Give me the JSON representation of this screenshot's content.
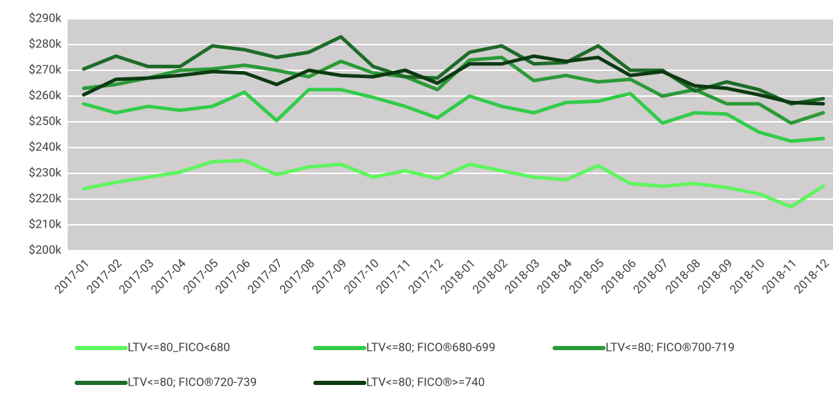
{
  "chart_data": {
    "type": "line",
    "categories": [
      "2017-01",
      "2017-02",
      "2017-03",
      "2017-04",
      "2017-05",
      "2017-06",
      "2017-07",
      "2017-08",
      "2017-09",
      "2017-10",
      "2017-11",
      "2017-12",
      "2018-01",
      "2018-02",
      "2018-03",
      "2018-04",
      "2018-05",
      "2018-06",
      "2018-07",
      "2018-08",
      "2018-09",
      "2018-10",
      "2018-11",
      "2018-12"
    ],
    "series": [
      {
        "name": "LTV<=80_FICO<680",
        "color": "#5ef55e",
        "values": [
          224000,
          226500,
          228500,
          230500,
          234500,
          235000,
          229500,
          232500,
          233500,
          228500,
          231000,
          228000,
          233500,
          231000,
          228500,
          227500,
          233000,
          226000,
          225000,
          226000,
          224500,
          222000,
          217000,
          225000
        ]
      },
      {
        "name": "LTV<=80; FICO®680-699",
        "color": "#33cc4a",
        "values": [
          257000,
          253500,
          256000,
          254500,
          256000,
          261500,
          250500,
          262500,
          262500,
          259500,
          256000,
          251500,
          260000,
          256000,
          253500,
          257500,
          258000,
          261000,
          249500,
          253500,
          253000,
          246000,
          242500,
          243500
        ]
      },
      {
        "name": "LTV<=80; FICO®700-719",
        "color": "#2b9a38",
        "values": [
          263000,
          264500,
          267000,
          270000,
          270500,
          272000,
          270000,
          267500,
          273500,
          269000,
          267500,
          262500,
          274000,
          275000,
          266000,
          268000,
          265500,
          266500,
          260000,
          262500,
          257000,
          257000,
          249500,
          253500
        ]
      },
      {
        "name": "LTV<=80; FICO®720-739",
        "color": "#1d6b28",
        "values": [
          270500,
          275500,
          271500,
          271500,
          279500,
          278000,
          275000,
          277000,
          283000,
          271500,
          267500,
          267000,
          277000,
          279500,
          272500,
          273000,
          279500,
          270000,
          270000,
          262000,
          265500,
          262500,
          257000,
          259000
        ]
      },
      {
        "name": "LTV<=80; FICO®>=740",
        "color": "#0c3a12",
        "values": [
          260500,
          266500,
          267000,
          268000,
          269500,
          269000,
          264500,
          270000,
          268000,
          267500,
          270000,
          265000,
          272500,
          272500,
          275500,
          273500,
          275000,
          268000,
          269500,
          264000,
          263000,
          260500,
          257500,
          257000
        ]
      }
    ],
    "ylim": [
      200000,
      290000
    ],
    "yticks": [
      {
        "value": 200000,
        "label": "$200k"
      },
      {
        "value": 210000,
        "label": "$210k"
      },
      {
        "value": 220000,
        "label": "$220k"
      },
      {
        "value": 230000,
        "label": "$230k"
      },
      {
        "value": 240000,
        "label": "$240k"
      },
      {
        "value": 250000,
        "label": "$250k"
      },
      {
        "value": 260000,
        "label": "$260k"
      },
      {
        "value": 270000,
        "label": "$270k"
      },
      {
        "value": 280000,
        "label": "$280k"
      },
      {
        "value": 290000,
        "label": "$290k"
      }
    ],
    "grid": true,
    "legend": "bottom"
  }
}
